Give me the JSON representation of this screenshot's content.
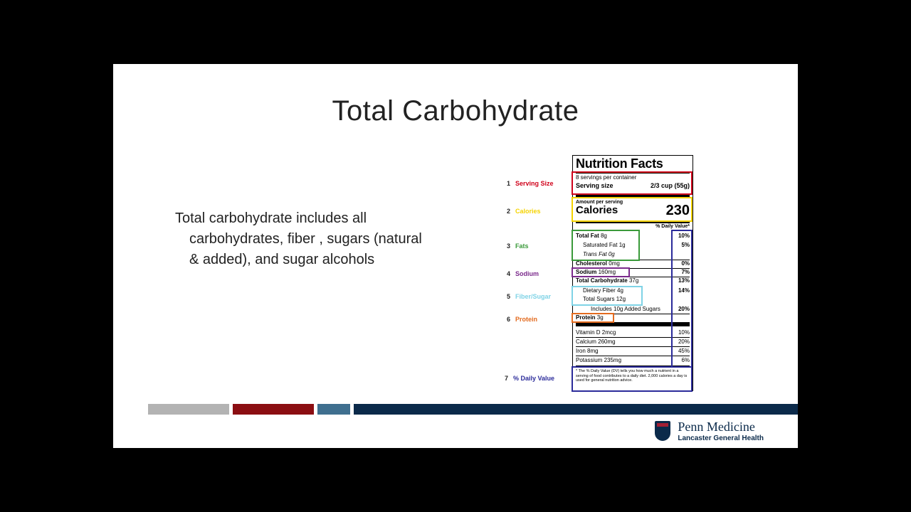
{
  "slide": {
    "title": "Total Carbohydrate",
    "body": {
      "line1": "Total carbohydrate includes  all",
      "line2": "carbohydrates, fiber , sugars (natural",
      "line3": "& added), and sugar alcohols"
    }
  },
  "legend": [
    {
      "num": "1",
      "label": "Serving Size",
      "color": "#d0021b"
    },
    {
      "num": "2",
      "label": "Calories",
      "color": "#f5d300"
    },
    {
      "num": "3",
      "label": "Fats",
      "color": "#3a9a3a"
    },
    {
      "num": "4",
      "label": "Sodium",
      "color": "#7b2a8c"
    },
    {
      "num": "5",
      "label": "Fiber/Sugar",
      "color": "#7fd3e6"
    },
    {
      "num": "6",
      "label": "Protein",
      "color": "#e36b1f"
    },
    {
      "num": "7",
      "label": "% Daily Value",
      "color": "#2b2b9a"
    }
  ],
  "nutrition_facts": {
    "header": "Nutrition Facts",
    "servings": "8 servings per container",
    "serving_size_label": "Serving size",
    "serving_size_value": "2/3 cup (55g)",
    "amount_per_serving": "Amount per serving",
    "calories_label": "Calories",
    "calories_value": "230",
    "dv_header": "% Daily Value*",
    "rows": [
      {
        "label": "Total Fat",
        "amount": "8g",
        "dv": "10%"
      },
      {
        "label": "Saturated Fat 1g",
        "amount": "",
        "dv": "5%"
      },
      {
        "label": "Trans Fat 0g",
        "amount": "",
        "dv": ""
      },
      {
        "label": "Cholesterol",
        "amount": "0mg",
        "dv": "0%"
      },
      {
        "label": "Sodium",
        "amount": "160mg",
        "dv": "7%"
      },
      {
        "label": "Total Carbohydrate",
        "amount": "37g",
        "dv": "13%"
      },
      {
        "label": "Dietary Fiber 4g",
        "amount": "",
        "dv": "14%"
      },
      {
        "label": "Total Sugars 12g",
        "amount": "",
        "dv": ""
      },
      {
        "label": "Includes 10g Added Sugars",
        "amount": "",
        "dv": "20%"
      },
      {
        "label": "Protein",
        "amount": "3g",
        "dv": ""
      }
    ],
    "vitamins": [
      {
        "label": "Vitamin D 2mcg",
        "dv": "10%"
      },
      {
        "label": "Calcium 260mg",
        "dv": "20%"
      },
      {
        "label": "Iron 8mg",
        "dv": "45%"
      },
      {
        "label": "Potassium 235mg",
        "dv": "6%"
      }
    ],
    "footnote": "* The % Daily Value (DV) tells you how much a nutrient in a serving of food contributes to a daily diet. 2,000 calories a day is used for general nutrition advice."
  },
  "logo": {
    "name": "Penn Medicine",
    "sub": "Lancaster General Health"
  },
  "colors": {
    "bar_gray": "#b3b3b3",
    "bar_red": "#8b0e12",
    "bar_teal": "#3f6f8f",
    "bar_navy": "#0b2a4a"
  }
}
